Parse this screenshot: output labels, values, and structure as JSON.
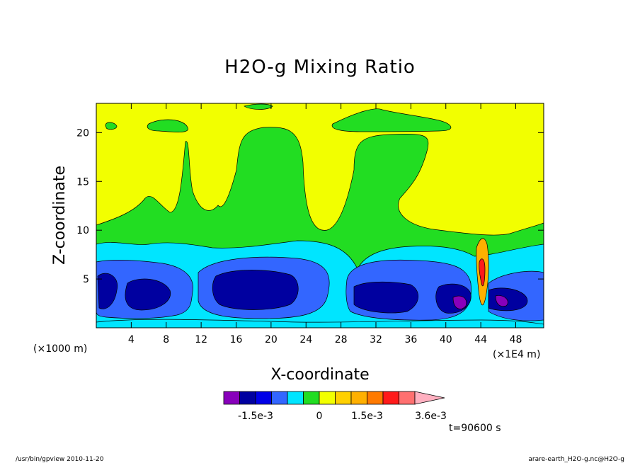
{
  "chart_data": {
    "type": "contour",
    "title": "H2O-g Mixing Ratio",
    "xlabel": "X-coordinate",
    "ylabel": "Z-coordinate",
    "x_unit_note": "(×1000 m)",
    "x_scale_note": "(×1E4 m)",
    "x_ticks": [
      "4",
      "8",
      "12",
      "16",
      "20",
      "24",
      "28",
      "32",
      "36",
      "40",
      "44",
      "48"
    ],
    "y_ticks": [
      "5",
      "10",
      "15",
      "20"
    ],
    "xlim": [
      0,
      51.2
    ],
    "ylim": [
      0,
      23
    ],
    "colorbar": {
      "levels": [
        -0.0024,
        -0.0018,
        -0.0015,
        -0.0012,
        -0.0006,
        -0.0003,
        0,
        0.0003,
        0.0009,
        0.0015,
        0.0021,
        0.0027,
        0.0033,
        0.0036
      ],
      "colors": [
        "#8800bb",
        "#0000a0",
        "#0000e8",
        "#3366ff",
        "#00e5ff",
        "#22dd22",
        "#f2ff00",
        "#ffd000",
        "#ffb000",
        "#ff7a00",
        "#ff1a1a",
        "#ff7070",
        "#ffb0c0"
      ],
      "labels": [
        "-1.5e-3",
        "0",
        "1.5e-3",
        "3.6e-3"
      ]
    },
    "time_label": "t=90600 s",
    "grid": false,
    "colors": {
      "yellow": "#f2ff00",
      "green": "#22dd22",
      "cyan": "#00e5ff",
      "blue": "#3366ff",
      "darkblue": "#0000a0",
      "purple": "#8800bb",
      "orange": "#ffb000",
      "red": "#ff1a1a"
    }
  },
  "footer": {
    "left": "/usr/bin/gpview  2010-11-20",
    "right": "arare-earth_H2O-g.nc@H2O-g"
  }
}
